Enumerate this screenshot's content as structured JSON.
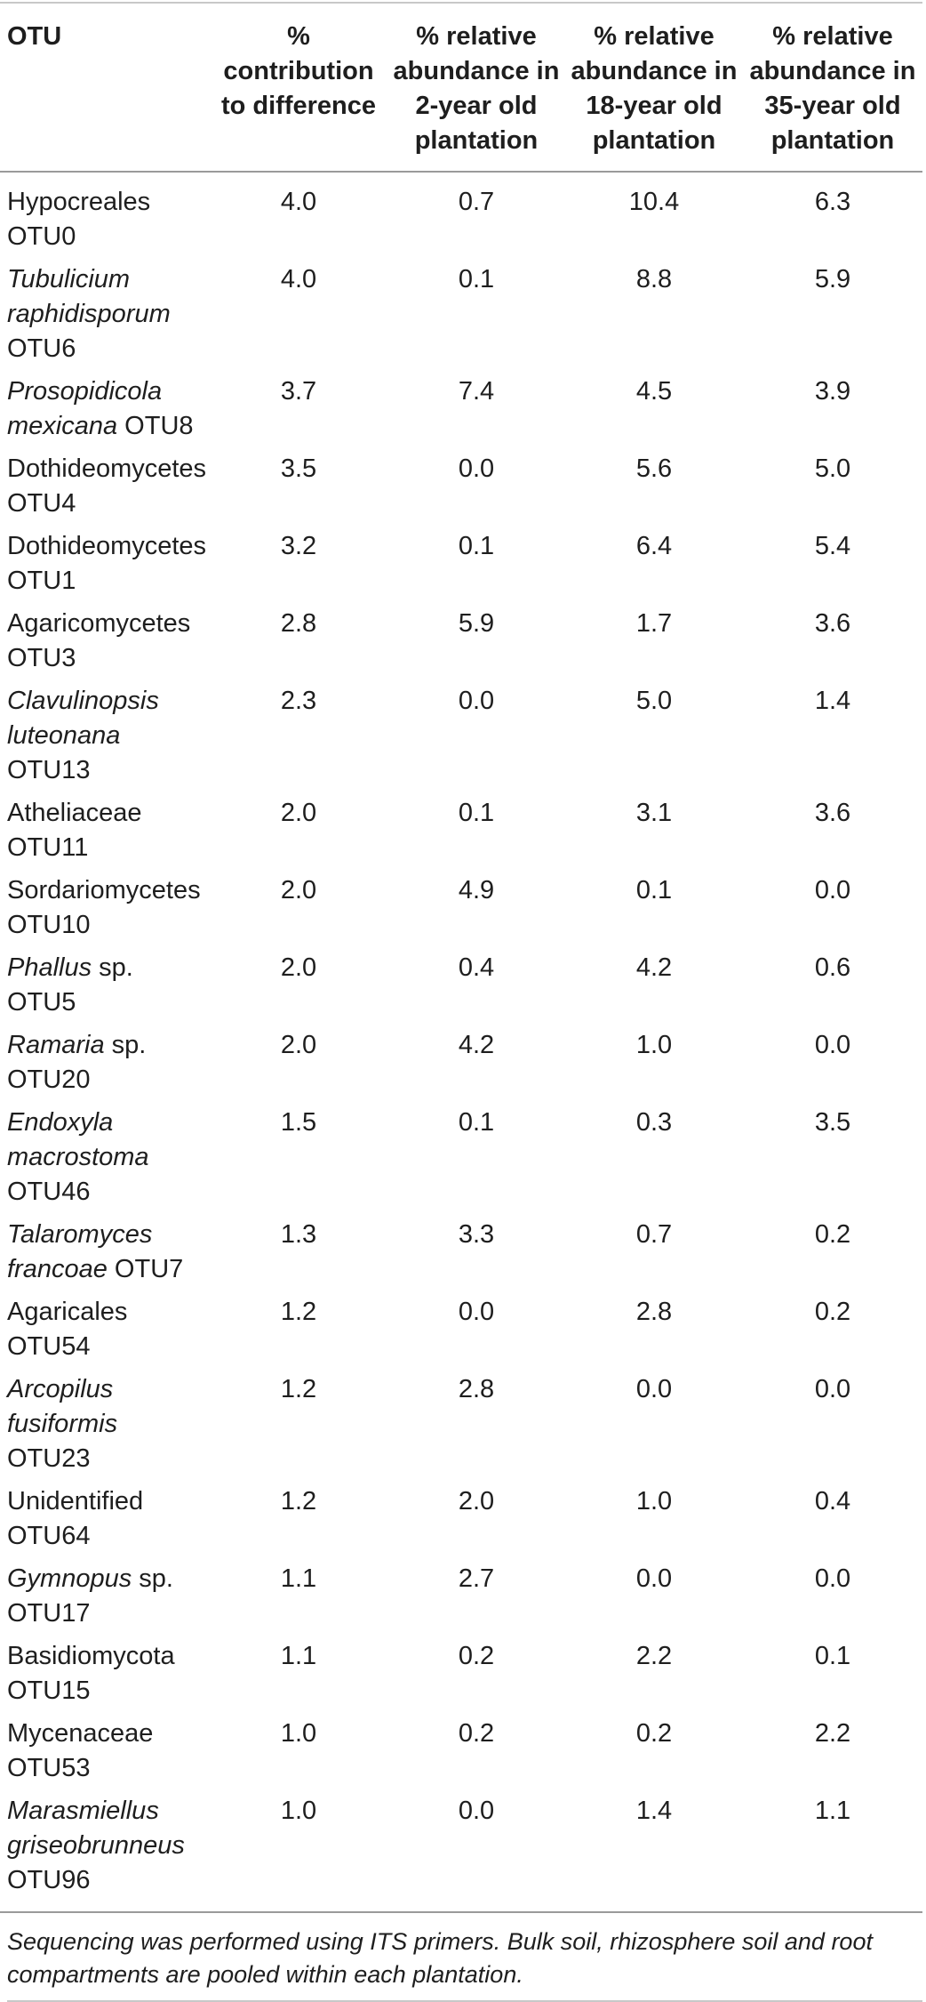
{
  "table": {
    "headers": [
      "OTU",
      "% contribution to difference",
      "% relative abundance in 2-year old plantation",
      "% relative abundance in 18-year old plantation",
      "% relative abundance in 35-year old plantation"
    ],
    "rows": [
      {
        "italic": "",
        "plain": "Hypocreales OTU0",
        "values": [
          "4.0",
          "0.7",
          "10.4",
          "6.3"
        ]
      },
      {
        "italic": "Tubulicium raphidisporum",
        "plain": " OTU6",
        "values": [
          "4.0",
          "0.1",
          "8.8",
          "5.9"
        ]
      },
      {
        "italic": "Prosopidicola mexicana",
        "plain": " OTU8",
        "values": [
          "3.7",
          "7.4",
          "4.5",
          "3.9"
        ]
      },
      {
        "italic": "",
        "plain": "Dothideomycetes OTU4",
        "values": [
          "3.5",
          "0.0",
          "5.6",
          "5.0"
        ]
      },
      {
        "italic": "",
        "plain": "Dothideomycetes OTU1",
        "values": [
          "3.2",
          "0.1",
          "6.4",
          "5.4"
        ]
      },
      {
        "italic": "",
        "plain": "Agaricomycetes OTU3",
        "values": [
          "2.8",
          "5.9",
          "1.7",
          "3.6"
        ]
      },
      {
        "italic": "Clavulinopsis luteonana",
        "plain": " OTU13",
        "values": [
          "2.3",
          "0.0",
          "5.0",
          "1.4"
        ]
      },
      {
        "italic": "",
        "plain": "Atheliaceae OTU11",
        "values": [
          "2.0",
          "0.1",
          "3.1",
          "3.6"
        ]
      },
      {
        "italic": "",
        "plain": "Sordariomycetes OTU10",
        "values": [
          "2.0",
          "4.9",
          "0.1",
          "0.0"
        ]
      },
      {
        "italic": "Phallus",
        "plain": " sp. OTU5",
        "values": [
          "2.0",
          "0.4",
          "4.2",
          "0.6"
        ]
      },
      {
        "italic": "Ramaria",
        "plain": " sp. OTU20",
        "values": [
          "2.0",
          "4.2",
          "1.0",
          "0.0"
        ]
      },
      {
        "italic": "Endoxyla macrostoma",
        "plain": " OTU46",
        "values": [
          "1.5",
          "0.1",
          "0.3",
          "3.5"
        ]
      },
      {
        "italic": "Talaromyces francoae",
        "plain": " OTU7",
        "values": [
          "1.3",
          "3.3",
          "0.7",
          "0.2"
        ]
      },
      {
        "italic": "",
        "plain": "Agaricales OTU54",
        "values": [
          "1.2",
          "0.0",
          "2.8",
          "0.2"
        ]
      },
      {
        "italic": "Arcopilus fusiformis",
        "plain": " OTU23",
        "values": [
          "1.2",
          "2.8",
          "0.0",
          "0.0"
        ]
      },
      {
        "italic": "",
        "plain": "Unidentified OTU64",
        "values": [
          "1.2",
          "2.0",
          "1.0",
          "0.4"
        ]
      },
      {
        "italic": "Gymnopus",
        "plain": " sp. OTU17",
        "values": [
          "1.1",
          "2.7",
          "0.0",
          "0.0"
        ]
      },
      {
        "italic": "",
        "plain": "Basidiomycota OTU15",
        "values": [
          "1.1",
          "0.2",
          "2.2",
          "0.1"
        ]
      },
      {
        "italic": "",
        "plain": "Mycenaceae OTU53",
        "values": [
          "1.0",
          "0.2",
          "0.2",
          "2.2"
        ]
      },
      {
        "italic": "Marasmiellus griseobrunneus",
        "plain": " OTU96",
        "values": [
          "1.0",
          "0.0",
          "1.4",
          "1.1"
        ]
      }
    ],
    "footnote": "Sequencing was performed using ITS primers. Bulk soil, rhizosphere soil and root compartments are pooled within each plantation."
  }
}
